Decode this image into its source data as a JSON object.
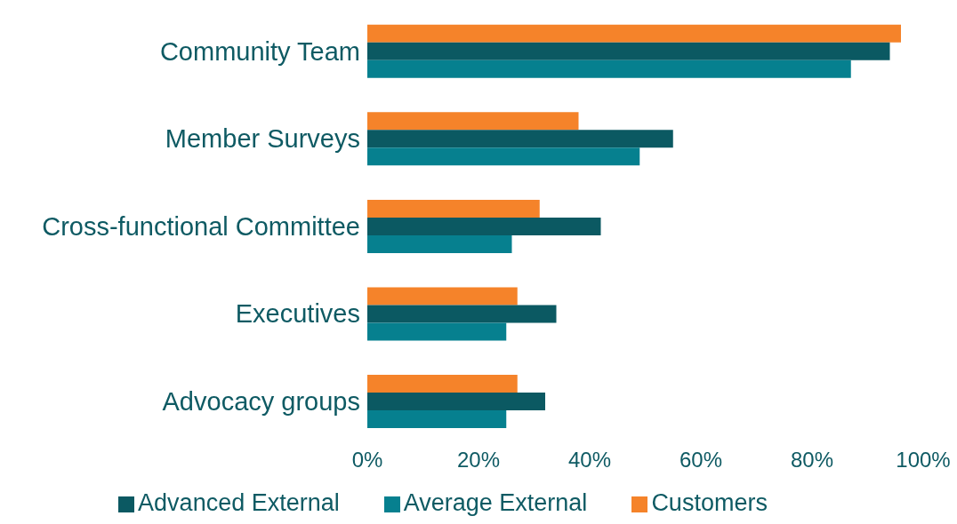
{
  "chart_data": {
    "type": "bar",
    "orientation": "horizontal",
    "categories": [
      "Community Team",
      "Member Surveys",
      "Cross-functional Committee",
      "Executives",
      "Advocacy groups"
    ],
    "series": [
      {
        "name": "Customers",
        "color": "#f5832a",
        "values": [
          96,
          38,
          31,
          27,
          27
        ]
      },
      {
        "name": "Advanced External",
        "color": "#0b5962",
        "values": [
          94,
          55,
          42,
          34,
          32
        ]
      },
      {
        "name": "Average External",
        "color": "#06808f",
        "values": [
          87,
          49,
          26,
          25,
          25
        ]
      }
    ],
    "xlim": [
      0,
      100
    ],
    "xticks": [
      {
        "value": 0,
        "label": "0%"
      },
      {
        "value": 20,
        "label": "20%"
      },
      {
        "value": 40,
        "label": "40%"
      },
      {
        "value": 60,
        "label": "60%"
      },
      {
        "value": 80,
        "label": "80%"
      },
      {
        "value": 100,
        "label": "100%"
      }
    ],
    "grid": false,
    "legend": "bottom"
  }
}
